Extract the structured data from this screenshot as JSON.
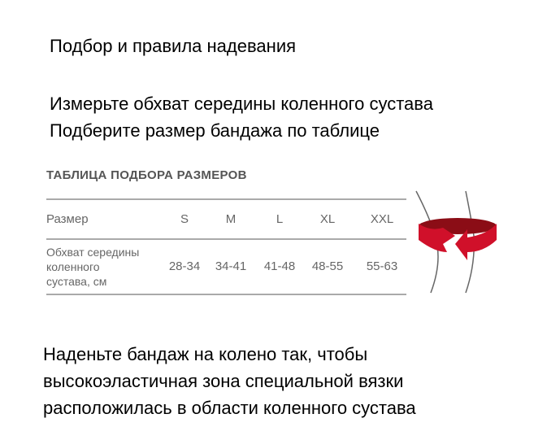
{
  "heading": "Подбор и правила надевания",
  "instructions": [
    "Измерьте обхват середины коленного сустава",
    "Подберите размер бандажа по таблице"
  ],
  "table": {
    "title": "ТАБЛИЦА ПОДБОРА РАЗМЕРОВ",
    "size_label": "Размер",
    "sizes": [
      "S",
      "M",
      "L",
      "XL",
      "XXL"
    ],
    "girth_label": [
      "Обхват середины",
      "коленного",
      "сустава, см"
    ],
    "ranges": [
      "28-34",
      "34-41",
      "41-48",
      "48-55",
      "55-63"
    ]
  },
  "accent_color": "#d0102a",
  "final": [
    "Наденьте бандаж на колено так, чтобы",
    "высокоэластичная зона специальной вязки",
    "расположилась в области коленного сустава"
  ]
}
